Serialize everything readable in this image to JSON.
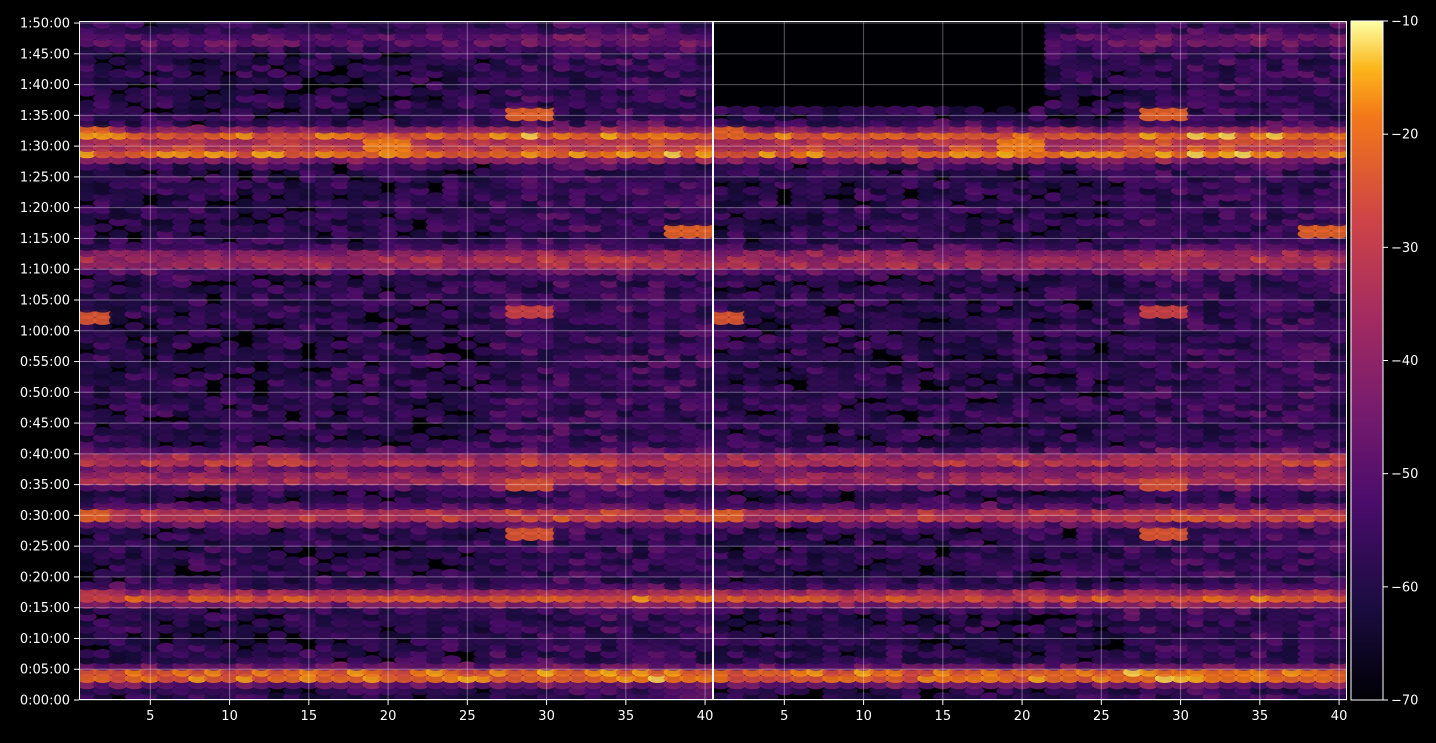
{
  "chart_data": {
    "type": "heatmap",
    "title": "",
    "xlabel": "",
    "ylabel": "",
    "grid": true,
    "background": "#000000",
    "colormap": "inferno",
    "panels": [
      {
        "name": "",
        "x_range": [
          1,
          40
        ],
        "x_ticks": [
          "5",
          "10",
          "15",
          "20",
          "25",
          "30",
          "35",
          "40"
        ],
        "x_tick_values": [
          5,
          10,
          15,
          20,
          25,
          30,
          35,
          40
        ]
      },
      {
        "name": "",
        "x_range": [
          1,
          40
        ],
        "x_ticks": [
          "5",
          "10",
          "15",
          "20",
          "25",
          "30",
          "35",
          "40"
        ],
        "x_tick_values": [
          5,
          10,
          15,
          20,
          25,
          30,
          35,
          40
        ]
      }
    ],
    "y_range_seconds": [
      0,
      6620
    ],
    "y_ticks": [
      "0:00:00",
      "0:05:00",
      "0:10:00",
      "0:15:00",
      "0:20:00",
      "0:25:00",
      "0:30:00",
      "0:35:00",
      "0:40:00",
      "0:45:00",
      "0:50:00",
      "0:55:00",
      "1:00:00",
      "1:05:00",
      "1:10:00",
      "1:15:00",
      "1:20:00",
      "1:25:00",
      "1:30:00",
      "1:35:00",
      "1:40:00",
      "1:45:00",
      "1:50:00"
    ],
    "y_tick_seconds": [
      0,
      300,
      600,
      900,
      1200,
      1500,
      1800,
      2100,
      2400,
      2700,
      3000,
      3300,
      3600,
      3900,
      4200,
      4500,
      4800,
      5100,
      5400,
      5700,
      6000,
      6300,
      6600
    ],
    "colorbar": {
      "min": -70,
      "max": -10,
      "ticks": [
        "−70",
        "−60",
        "−50",
        "−40",
        "−30",
        "−20",
        "−10"
      ],
      "tick_values": [
        -70,
        -60,
        -50,
        -40,
        -30,
        -20,
        -10
      ]
    },
    "bands": [
      {
        "t": 240,
        "level": -18
      },
      {
        "t": 1000,
        "level": -27
      },
      {
        "t": 1800,
        "level": -30
      },
      {
        "t": 2160,
        "level": -36
      },
      {
        "t": 2340,
        "level": -32
      },
      {
        "t": 4260,
        "level": -40
      },
      {
        "t": 4320,
        "level": -38
      },
      {
        "t": 5340,
        "level": -22
      },
      {
        "t": 5500,
        "level": -24
      },
      {
        "t": 6440,
        "level": -50
      }
    ],
    "hotspots": [
      {
        "x": 1,
        "t": 1800,
        "level": -22
      },
      {
        "x": 1,
        "t": 3720,
        "level": -24
      },
      {
        "x": 1,
        "t": 5560,
        "level": -22
      },
      {
        "x": 29,
        "t": 1650,
        "level": -24
      },
      {
        "x": 29,
        "t": 2100,
        "level": -25
      },
      {
        "x": 29,
        "t": 3800,
        "level": -28
      },
      {
        "x": 29,
        "t": 5740,
        "level": -22
      },
      {
        "x": 39,
        "t": 4590,
        "level": -22
      },
      {
        "x": 20,
        "t": 5420,
        "level": -18
      }
    ]
  }
}
